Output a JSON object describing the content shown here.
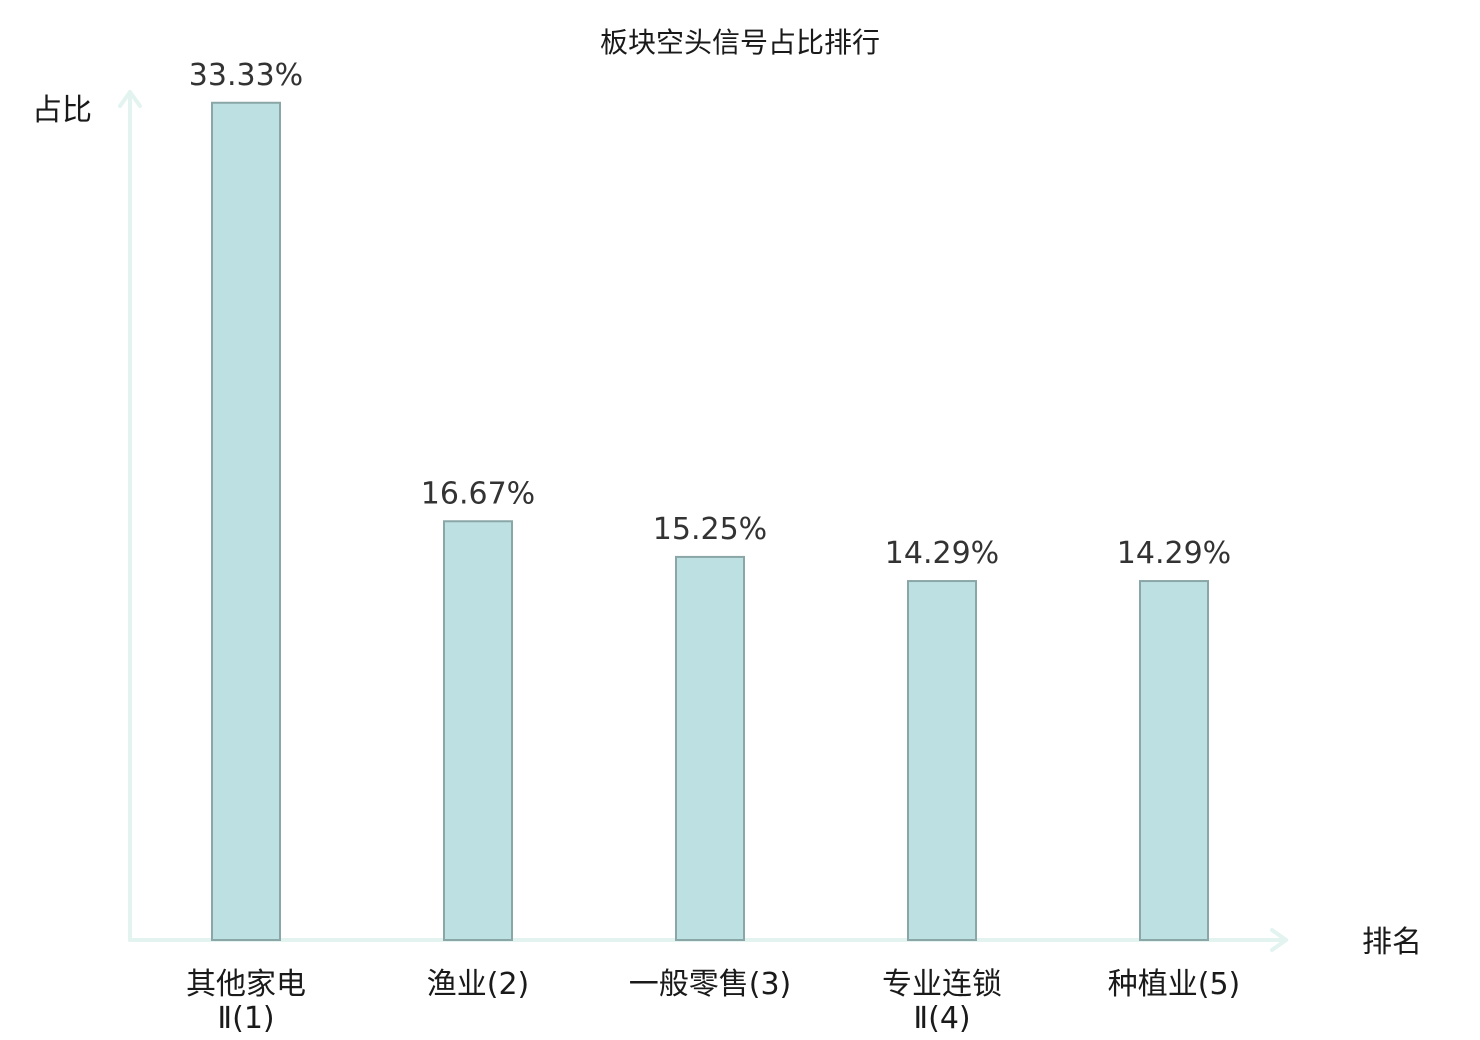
{
  "chart_data": {
    "type": "bar",
    "title": "板块空头信号占比排行",
    "ylabel": "占比",
    "xlabel": "排名",
    "ylim": [
      0,
      36
    ],
    "grid": false,
    "categories": [
      {
        "lines": [
          "其他家电",
          "Ⅱ(1)"
        ],
        "highlight": true
      },
      {
        "lines": [
          "渔业(2)"
        ],
        "highlight": false
      },
      {
        "lines": [
          "一般零售(3)"
        ],
        "highlight": false
      },
      {
        "lines": [
          "专业连锁",
          "Ⅱ(4)"
        ],
        "highlight": false
      },
      {
        "lines": [
          "种植业(5)"
        ],
        "highlight": false
      }
    ],
    "values": [
      33.33,
      16.67,
      15.25,
      14.29,
      14.29
    ],
    "value_labels": [
      "33.33%",
      "16.67%",
      "15.25%",
      "14.29%",
      "14.29%"
    ],
    "colors": {
      "bar_fill": "#bde0e2",
      "bar_stroke": "#8aa6a6",
      "axis": "#e2f3f0",
      "highlight_text": "#e01010",
      "text": "#1a1a1a"
    }
  }
}
